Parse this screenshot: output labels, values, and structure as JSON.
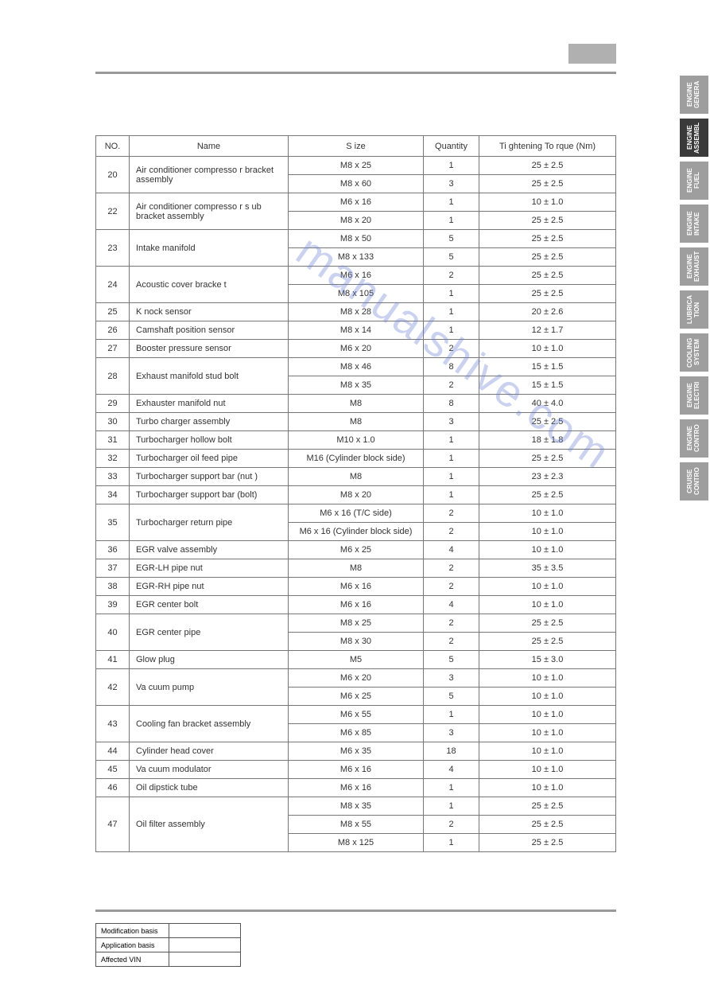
{
  "watermark_text": "manualshive.com",
  "side_tabs": [
    {
      "label": "ENGINE GENERA",
      "active": false
    },
    {
      "label": "ENGINE ASSEMBL",
      "active": true
    },
    {
      "label": "ENGINE FUEL",
      "active": false
    },
    {
      "label": "ENGINE INTAKE",
      "active": false
    },
    {
      "label": "ENGINE EXHAUST",
      "active": false
    },
    {
      "label": "LUBRICA TION",
      "active": false
    },
    {
      "label": "COOLING SYSTEM",
      "active": false
    },
    {
      "label": "ENGINE ELECTRI",
      "active": false
    },
    {
      "label": "ENGINE CONTRO",
      "active": false
    },
    {
      "label": "CRUISE CONTRO",
      "active": false
    }
  ],
  "table": {
    "headers": [
      "NO.",
      "Name",
      "S ize",
      "Quantity",
      "Ti ghtening  To rque  (Nm)"
    ],
    "rows": [
      {
        "no": "20",
        "name": "Air  conditioner  compresso r bracket  assembly",
        "specs": [
          {
            "size": "M8  x  25",
            "qty": "1",
            "torque": "25  ± 2.5"
          },
          {
            "size": "M8  x  60",
            "qty": "3",
            "torque": "25  ± 2.5"
          }
        ]
      },
      {
        "no": "22",
        "name": "Air  conditioner  compresso r s ub  bracket  assembly",
        "specs": [
          {
            "size": "M6  x  16",
            "qty": "1",
            "torque": "10  ± 1.0"
          },
          {
            "size": "M8  x  20",
            "qty": "1",
            "torque": "25  ± 2.5"
          }
        ]
      },
      {
        "no": "23",
        "name": "Intake  manifold",
        "specs": [
          {
            "size": "M8  x  50",
            "qty": "5",
            "torque": "25  ± 2.5"
          },
          {
            "size": "M8  x  133",
            "qty": "5",
            "torque": "25  ± 2.5"
          }
        ]
      },
      {
        "no": "24",
        "name": "Acoustic  cover  bracke t",
        "specs": [
          {
            "size": "M6  x  16",
            "qty": "2",
            "torque": "25  ± 2.5"
          },
          {
            "size": "M8  x  105",
            "qty": "1",
            "torque": "25  ± 2.5"
          }
        ]
      },
      {
        "no": "25",
        "name": "K nock  sensor",
        "specs": [
          {
            "size": "M8  x  28",
            "qty": "1",
            "torque": "20  ± 2.6"
          }
        ]
      },
      {
        "no": "26",
        "name": "Camshaft   position  sensor",
        "specs": [
          {
            "size": "M8  x  14",
            "qty": "1",
            "torque": "12  ± 1.7"
          }
        ]
      },
      {
        "no": "27",
        "name": "Booster  pressure  sensor",
        "specs": [
          {
            "size": "M6  x  20",
            "qty": "2",
            "torque": "10  ± 1.0"
          }
        ]
      },
      {
        "no": "28",
        "name": "Exhaust   manifold  stud  bolt",
        "specs": [
          {
            "size": "M8  x  46",
            "qty": "8",
            "torque": "15  ± 1.5"
          },
          {
            "size": "M8  x  35",
            "qty": "2",
            "torque": "15  ± 1.5"
          }
        ]
      },
      {
        "no": "29",
        "name": "Exhauster   manifold  nut",
        "specs": [
          {
            "size": "M8",
            "qty": "8",
            "torque": "40  ± 4.0"
          }
        ]
      },
      {
        "no": "30",
        "name": "Turbo  charger  assembly",
        "specs": [
          {
            "size": "M8",
            "qty": "3",
            "torque": "25  ± 2.5"
          }
        ]
      },
      {
        "no": "31",
        "name": "Turbocharger   hollow  bolt",
        "specs": [
          {
            "size": "M10  x  1.0",
            "qty": "1",
            "torque": "18  ± 1.8"
          }
        ]
      },
      {
        "no": "32",
        "name": "Turbocharger oil feed pipe",
        "specs": [
          {
            "size": "M16  (Cylinder  block  side)",
            "qty": "1",
            "torque": "25  ± 2.5"
          }
        ]
      },
      {
        "no": "33",
        "name": "Turbocharger  support bar (nut )",
        "specs": [
          {
            "size": "M8",
            "qty": "1",
            "torque": "23  ± 2.3"
          }
        ]
      },
      {
        "no": "34",
        "name": "Turbocharger  support bar (bolt)",
        "specs": [
          {
            "size": "M8  x  20",
            "qty": "1",
            "torque": "25  ± 2.5"
          }
        ]
      },
      {
        "no": "35",
        "name": "Turbocharger return pipe",
        "specs": [
          {
            "size": "M6  x  16  (T/C  side)",
            "qty": "2",
            "torque": "10  ± 1.0"
          },
          {
            "size": "M6  x  16  (Cylinder  block  side)",
            "qty": "2",
            "torque": "10  ± 1.0"
          }
        ]
      },
      {
        "no": "36",
        "name": "EGR   valve  assembly",
        "specs": [
          {
            "size": "M6  x  25",
            "qty": "4",
            "torque": "10  ± 1.0"
          }
        ]
      },
      {
        "no": "37",
        "name": "EGR-LH    pipe  nut",
        "specs": [
          {
            "size": "M8",
            "qty": "2",
            "torque": "35  ± 3.5"
          }
        ]
      },
      {
        "no": "38",
        "name": "EGR-RH    pipe  nut",
        "specs": [
          {
            "size": "M6  x  16",
            "qty": "2",
            "torque": "10  ± 1.0"
          }
        ]
      },
      {
        "no": "39",
        "name": "EGR   center  bolt",
        "specs": [
          {
            "size": "M6  x  16",
            "qty": "4",
            "torque": "10  ± 1.0"
          }
        ]
      },
      {
        "no": "40",
        "name": "EGR   center  pipe",
        "specs": [
          {
            "size": "M8  x  25",
            "qty": "2",
            "torque": "25  ± 2.5"
          },
          {
            "size": "M8  x  30",
            "qty": "2",
            "torque": "25  ± 2.5"
          }
        ]
      },
      {
        "no": "41",
        "name": "Glow  plug",
        "specs": [
          {
            "size": "M5",
            "qty": "5",
            "torque": "15  ± 3.0"
          }
        ]
      },
      {
        "no": "42",
        "name": "Va cuum  pump",
        "specs": [
          {
            "size": "M6  x  20",
            "qty": "3",
            "torque": "10  ± 1.0"
          },
          {
            "size": "M6  x  25",
            "qty": "5",
            "torque": "10  ± 1.0"
          }
        ]
      },
      {
        "no": "43",
        "name": "Cooling  fan  bracket  assembly",
        "specs": [
          {
            "size": "M6  x  55",
            "qty": "1",
            "torque": "10  ± 1.0"
          },
          {
            "size": "M6  x  85",
            "qty": "3",
            "torque": "10  ± 1.0"
          }
        ]
      },
      {
        "no": "44",
        "name": "Cylinder  head  cover",
        "specs": [
          {
            "size": "M6  x  35",
            "qty": "18",
            "torque": "10  ± 1.0"
          }
        ]
      },
      {
        "no": "45",
        "name": "Va cuum  modulator",
        "specs": [
          {
            "size": "M6  x  16",
            "qty": "4",
            "torque": "10  ± 1.0"
          }
        ]
      },
      {
        "no": "46",
        "name": "Oil  dipstick  tube",
        "specs": [
          {
            "size": "M6  x  16",
            "qty": "1",
            "torque": "10  ± 1.0"
          }
        ]
      },
      {
        "no": "47",
        "name": "Oil  filter  assembly",
        "specs": [
          {
            "size": "M8  x  35",
            "qty": "1",
            "torque": "25  ± 2.5"
          },
          {
            "size": "M8  x  55",
            "qty": "2",
            "torque": "25  ± 2.5"
          },
          {
            "size": "M8  x  125",
            "qty": "1",
            "torque": "25  ± 2.5"
          }
        ]
      }
    ]
  },
  "footer_rows": [
    {
      "label": "Modification basis",
      "value": ""
    },
    {
      "label": "Application basis",
      "value": ""
    },
    {
      "label": "Affected VIN",
      "value": ""
    }
  ]
}
